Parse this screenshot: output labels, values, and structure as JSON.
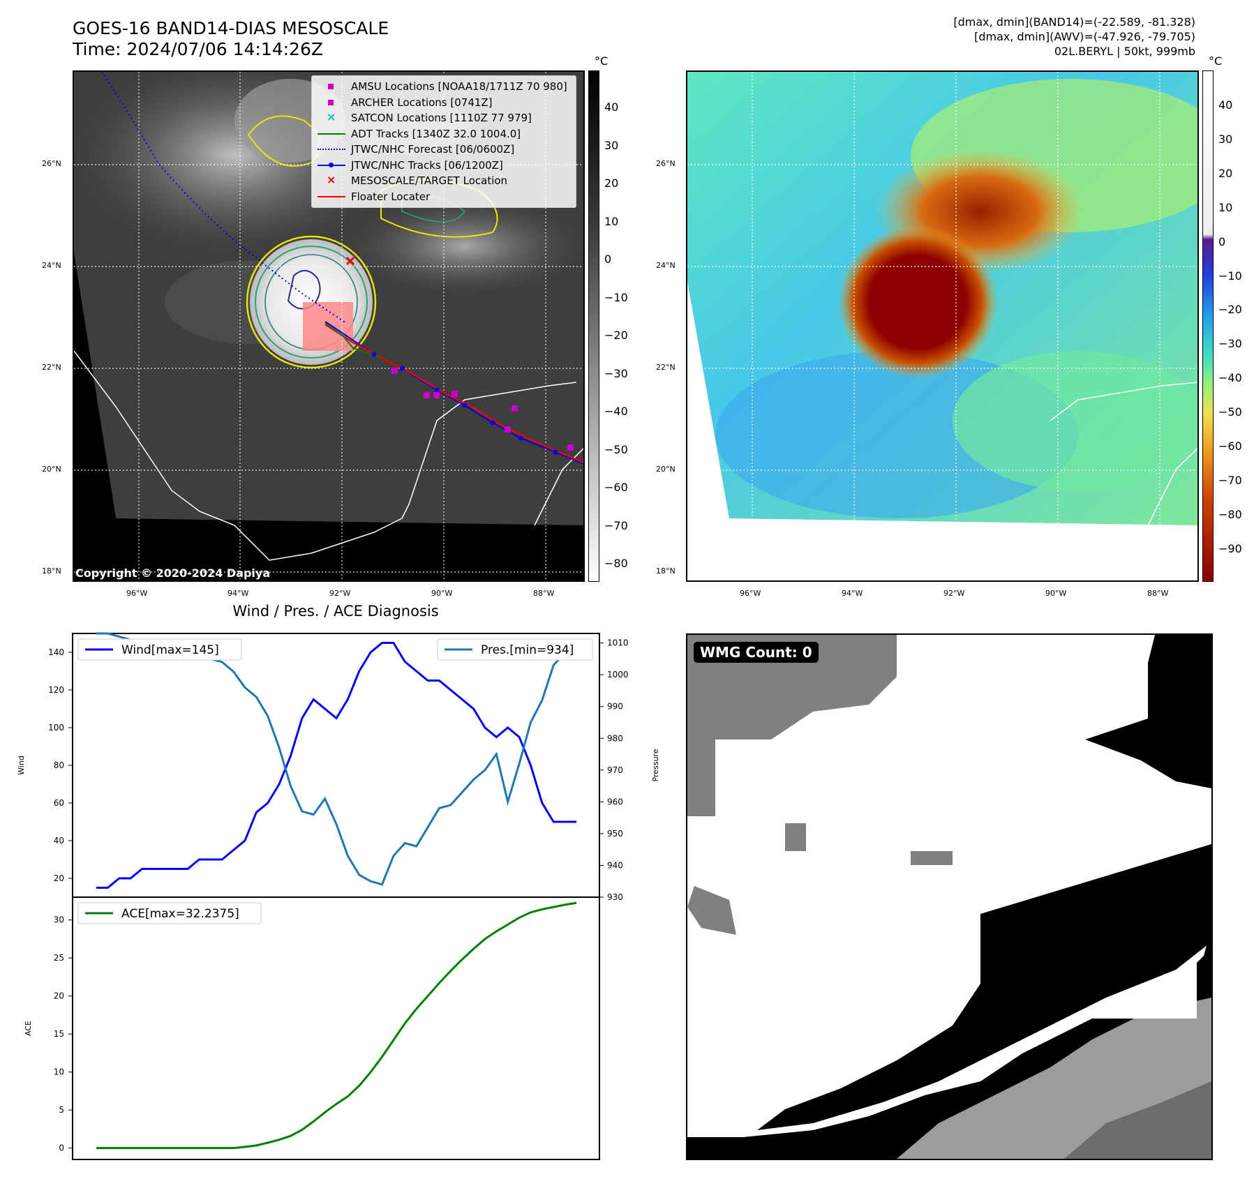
{
  "header": {
    "title_line1": "GOES-16 BAND14-DIAS MESOSCALE",
    "title_line2": "Time: 2024/07/06 14:14:26Z",
    "info_line1": "[dmax, dmin](BAND14)=(-22.589, -81.328)",
    "info_line2": "[dmax, dmin](AWV)=(-47.926, -79.705)",
    "info_line3": "02L.BERYL | 50kt, 999mb"
  },
  "map": {
    "lon_ticks": [
      "96°W",
      "94°W",
      "92°W",
      "90°W",
      "88°W"
    ],
    "lat_ticks": [
      "26°N",
      "24°N",
      "22°N",
      "20°N",
      "18°N"
    ],
    "copyright": "Copyright © 2020-2024 Dapiya"
  },
  "colorbar_left": {
    "unit": "°C",
    "ticks": [
      "40",
      "30",
      "20",
      "10",
      "0",
      "−10",
      "−20",
      "−30",
      "−40",
      "−50",
      "−60",
      "−70",
      "−80"
    ]
  },
  "colorbar_right": {
    "unit": "°C",
    "ticks": [
      "40",
      "30",
      "20",
      "10",
      "0",
      "−10",
      "−20",
      "−30",
      "−40",
      "−50",
      "−60",
      "−70",
      "−80",
      "−90"
    ]
  },
  "legend": {
    "items": [
      {
        "label": "AMSU Locations [NOAA18/1711Z 70 980]",
        "symbol": "square",
        "color": "#cc00cc"
      },
      {
        "label": "ARCHER Locations [0741Z]",
        "symbol": "square",
        "color": "#cc00cc"
      },
      {
        "label": "SATCON Locations [1110Z 77 979]",
        "symbol": "x",
        "color": "#00bbbb"
      },
      {
        "label": "ADT Tracks [1340Z 32.0 1004.0]",
        "symbol": "line",
        "color": "#008000"
      },
      {
        "label": "JTWC/NHC Forecast [06/0600Z]",
        "symbol": "dotted",
        "color": "#0000ee"
      },
      {
        "label": "JTWC/NHC Tracks [06/1200Z]",
        "symbol": "linedot",
        "color": "#0000ee"
      },
      {
        "label": "MESOSCALE/TARGET Location",
        "symbol": "x",
        "color": "#ee0000"
      },
      {
        "label": "Floater Locater",
        "symbol": "line",
        "color": "#ee0000"
      }
    ]
  },
  "wmg": {
    "label": "WMG Count: 0"
  },
  "chart_data": [
    {
      "type": "line",
      "title": "Wind / Pres. / ACE Diagnosis",
      "ylabel": "Wind",
      "y2label": "Pressure",
      "ylim": [
        10,
        150
      ],
      "y2lim": [
        930,
        1013
      ],
      "yticks": [
        20,
        40,
        60,
        80,
        100,
        120,
        140
      ],
      "y2ticks": [
        930,
        940,
        950,
        960,
        970,
        980,
        990,
        1000,
        1010
      ],
      "series": [
        {
          "name": "Wind[max=145]",
          "color": "#0000ff",
          "values": [
            15,
            15,
            20,
            20,
            25,
            25,
            25,
            25,
            25,
            30,
            30,
            30,
            35,
            40,
            55,
            60,
            70,
            85,
            105,
            115,
            110,
            105,
            115,
            130,
            140,
            145,
            145,
            135,
            130,
            125,
            125,
            120,
            115,
            110,
            100,
            95,
            100,
            95,
            80,
            60,
            50,
            50,
            50
          ]
        },
        {
          "name": "Pres.[min=934]",
          "color": "#1f77b4",
          "values": [
            1013,
            1013,
            1012,
            1011,
            1010,
            1009,
            1007,
            1007,
            1006,
            1005,
            1005,
            1004,
            1001,
            996,
            993,
            987,
            977,
            965,
            957,
            956,
            961,
            953,
            943,
            937,
            935,
            934,
            943,
            947,
            946,
            952,
            958,
            959,
            963,
            967,
            970,
            975,
            960,
            972,
            985,
            992,
            1003,
            1007,
            1005
          ]
        }
      ]
    },
    {
      "type": "line",
      "ylabel": "ACE",
      "ylim": [
        -1.5,
        33
      ],
      "yticks": [
        0,
        5,
        10,
        15,
        20,
        25,
        30
      ],
      "series": [
        {
          "name": "ACE[max=32.2375]",
          "color": "#008000",
          "values": [
            0,
            0,
            0,
            0,
            0,
            0,
            0,
            0,
            0,
            0,
            0,
            0,
            0,
            0.15,
            0.35,
            0.7,
            1.1,
            1.6,
            2.4,
            3.5,
            4.7,
            5.8,
            6.8,
            8.2,
            10.0,
            12.0,
            14.2,
            16.4,
            18.3,
            20.0,
            21.7,
            23.3,
            24.8,
            26.2,
            27.5,
            28.5,
            29.4,
            30.3,
            31.0,
            31.4,
            31.7,
            32.0,
            32.24
          ]
        }
      ]
    }
  ]
}
